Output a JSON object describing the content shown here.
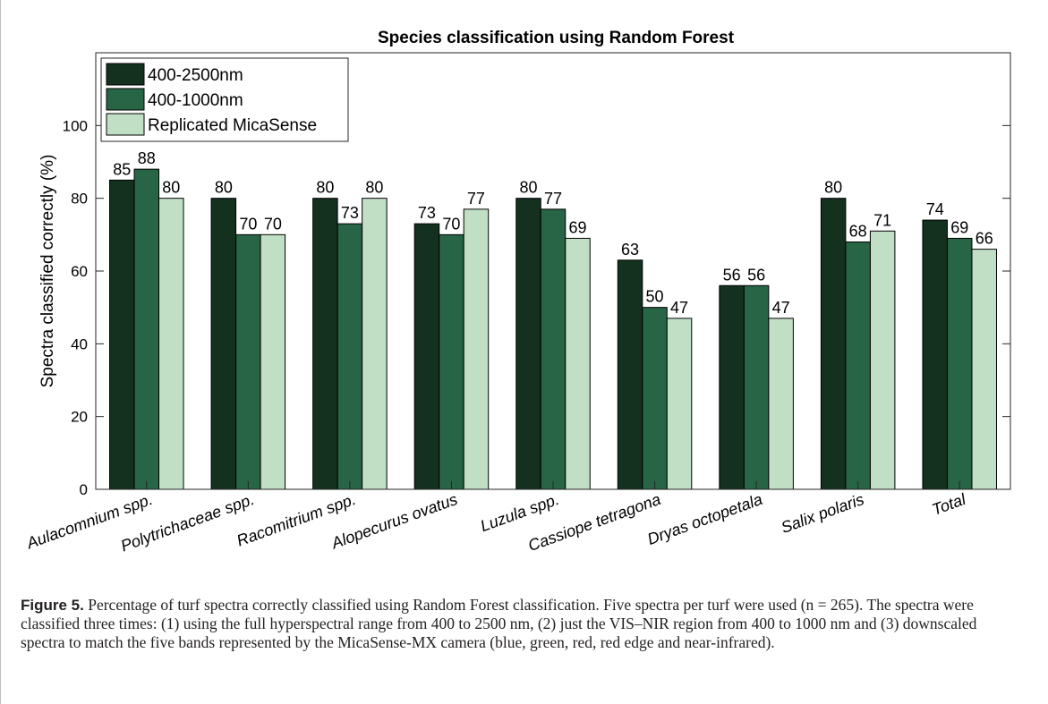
{
  "colors": {
    "series": [
      "#14311f",
      "#286446",
      "#c1dfc5"
    ],
    "axis": "#262626"
  },
  "chart_data": {
    "type": "bar",
    "title": "Species classification using Random Forest",
    "xlabel": "",
    "ylabel": "Spectra classified correctly (%)",
    "ylim": [
      0,
      120
    ],
    "yticks": [
      0,
      20,
      40,
      60,
      80,
      100
    ],
    "categories": [
      "Aulacomnium spp.",
      "Polytrichaceae spp.",
      "Racomitrium spp.",
      "Alopecurus ovatus",
      "Luzula spp.",
      "Cassiope tetragona",
      "Dryas octopetala",
      "Salix polaris",
      "Total"
    ],
    "series": [
      {
        "name": "400-2500nm",
        "values": [
          85,
          80,
          80,
          73,
          80,
          63,
          56,
          80,
          74
        ]
      },
      {
        "name": "400-1000nm",
        "values": [
          88,
          70,
          73,
          70,
          77,
          50,
          56,
          68,
          69
        ]
      },
      {
        "name": "Replicated MicaSense",
        "values": [
          80,
          70,
          80,
          77,
          69,
          47,
          47,
          71,
          66
        ]
      }
    ],
    "legend_position": "top-left",
    "grid": false
  },
  "caption": {
    "label": "Figure 5.",
    "text": " Percentage of turf spectra correctly classified using Random Forest classification. Five spectra per turf were used (n = 265). The spectra were classified three times: (1) using the full hyperspectral range from 400 to 2500 nm, (2) just the VIS–NIR region from 400 to 1000 nm and (3) downscaled spectra to match the five bands represented by the MicaSense-MX camera (blue, green, red, red edge and near-infrared)."
  }
}
